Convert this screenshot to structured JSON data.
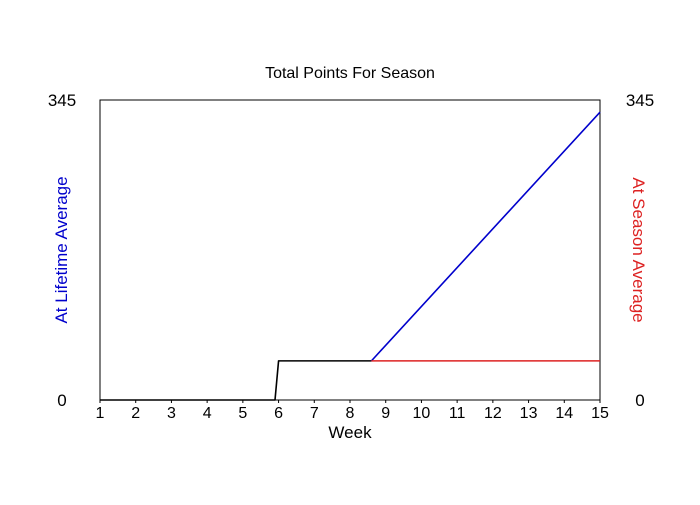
{
  "chart_data": {
    "type": "line",
    "title": "Total Points For Season",
    "xlabel": "Week",
    "ylabel_left": "At Lifetime Average",
    "ylabel_right": "At Season Average",
    "xlim": [
      1,
      15
    ],
    "ylim": [
      0,
      345
    ],
    "x_ticks": [
      1,
      2,
      3,
      4,
      5,
      6,
      7,
      8,
      9,
      10,
      11,
      12,
      13,
      14,
      15
    ],
    "y_ticks_left": [
      0,
      345
    ],
    "y_ticks_right": [
      0,
      345
    ],
    "grid": false,
    "colors": {
      "left_axis_label": "#0000cc",
      "right_axis_label": "#dd2222",
      "title": "#000000"
    },
    "series": [
      {
        "color": "#000000",
        "points": [
          [
            1,
            0
          ],
          [
            5.9,
            0
          ],
          [
            6.0,
            45
          ],
          [
            8.6,
            45
          ]
        ]
      },
      {
        "color": "#0000cc",
        "points": [
          [
            8.6,
            45
          ],
          [
            15,
            331
          ]
        ]
      },
      {
        "color": "#dd2222",
        "points": [
          [
            8.6,
            45
          ],
          [
            15,
            45
          ]
        ]
      }
    ]
  }
}
